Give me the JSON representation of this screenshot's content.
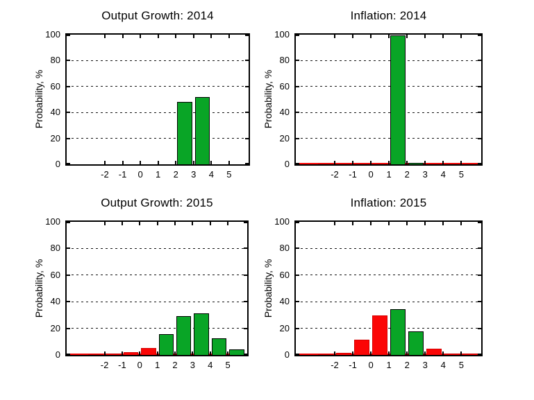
{
  "figure": {
    "background": "#ffffff",
    "axis_color": "#000000",
    "grid_on": true,
    "grid_y": [
      20,
      40,
      60,
      80
    ],
    "yticks": [
      0,
      20,
      40,
      60,
      80,
      100
    ],
    "xticks": [
      -2,
      -1,
      0,
      1,
      2,
      3,
      4,
      5
    ],
    "xlim": [
      -4.15,
      6.1
    ],
    "ylim": [
      0,
      100
    ],
    "bar_width": 0.85,
    "colors": {
      "green": "#09a526",
      "red": "#fb0606",
      "axis": "#000000"
    }
  },
  "chart_data": [
    {
      "type": "bar",
      "title": "Output Growth: 2014",
      "xlabel": "",
      "ylabel": "Probability, %",
      "xlim": [
        -4.15,
        6.1
      ],
      "ylim": [
        0,
        100
      ],
      "red_baseline": false,
      "bars": [
        {
          "x": 2.5,
          "v": 48,
          "c": "green"
        },
        {
          "x": 3.5,
          "v": 52,
          "c": "green"
        }
      ]
    },
    {
      "type": "bar",
      "title": "Inflation: 2014",
      "xlabel": "",
      "ylabel": "Probability, %",
      "xlim": [
        -4.15,
        6.1
      ],
      "ylim": [
        0,
        100
      ],
      "red_baseline": true,
      "bars": [
        {
          "x": -2.5,
          "v": 0.3,
          "c": "red"
        },
        {
          "x": -1.5,
          "v": 0.3,
          "c": "red"
        },
        {
          "x": -0.5,
          "v": 0.3,
          "c": "red"
        },
        {
          "x": 0.5,
          "v": 0.7,
          "c": "red"
        },
        {
          "x": 1.5,
          "v": 99.5,
          "c": "green"
        },
        {
          "x": 2.5,
          "v": 1.2,
          "c": "green"
        },
        {
          "x": 3.5,
          "v": 0.3,
          "c": "red"
        },
        {
          "x": 4.5,
          "v": 0.3,
          "c": "red"
        },
        {
          "x": 5.5,
          "v": 0.3,
          "c": "red"
        }
      ]
    },
    {
      "type": "bar",
      "title": "Output Growth: 2015",
      "xlabel": "",
      "ylabel": "Probability, %",
      "xlim": [
        -4.15,
        6.1
      ],
      "ylim": [
        0,
        100
      ],
      "red_baseline": true,
      "bars": [
        {
          "x": -2.5,
          "v": 0.7,
          "c": "red"
        },
        {
          "x": -1.5,
          "v": 1.2,
          "c": "red"
        },
        {
          "x": -0.5,
          "v": 2.2,
          "c": "red"
        },
        {
          "x": 0.5,
          "v": 5,
          "c": "red"
        },
        {
          "x": 1.5,
          "v": 15.5,
          "c": "green"
        },
        {
          "x": 2.5,
          "v": 29,
          "c": "green"
        },
        {
          "x": 3.5,
          "v": 31.5,
          "c": "green"
        },
        {
          "x": 4.5,
          "v": 12.5,
          "c": "green"
        },
        {
          "x": 5.5,
          "v": 4,
          "c": "green"
        }
      ]
    },
    {
      "type": "bar",
      "title": "Inflation: 2015",
      "xlabel": "",
      "ylabel": "Probability, %",
      "xlim": [
        -4.15,
        6.1
      ],
      "ylim": [
        0,
        100
      ],
      "red_baseline": true,
      "bars": [
        {
          "x": -2.5,
          "v": 0.6,
          "c": "red"
        },
        {
          "x": -1.5,
          "v": 1.7,
          "c": "red"
        },
        {
          "x": -0.5,
          "v": 11.5,
          "c": "red"
        },
        {
          "x": 0.5,
          "v": 29.5,
          "c": "red"
        },
        {
          "x": 1.5,
          "v": 34.5,
          "c": "green"
        },
        {
          "x": 2.5,
          "v": 17.5,
          "c": "green"
        },
        {
          "x": 3.5,
          "v": 4.5,
          "c": "red"
        },
        {
          "x": 4.5,
          "v": 1.2,
          "c": "red"
        },
        {
          "x": 5.5,
          "v": 0.8,
          "c": "red"
        }
      ]
    }
  ]
}
